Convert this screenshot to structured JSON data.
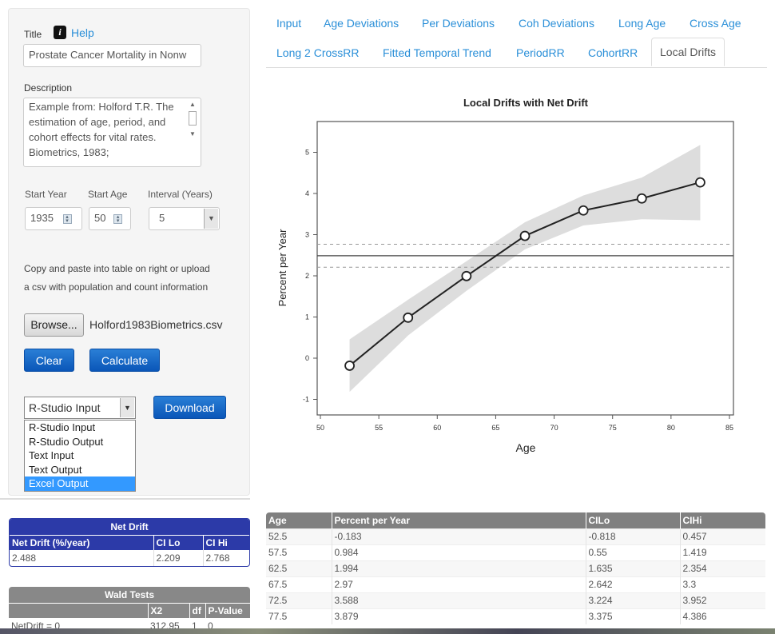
{
  "sidebar": {
    "title_label": "Title",
    "help_label": "Help",
    "title_value": "Prostate Cancer Mortality in Nonw",
    "description_label": "Description",
    "description_value": " Example from: Holford T.R. The estimation of age, period, and cohort effects for vital rates. Biometrics, 1983;",
    "start_year_label": "Start Year",
    "start_year": "1935",
    "start_age_label": "Start Age",
    "start_age": "50",
    "interval_label": "Interval (Years)",
    "interval": "5",
    "upload_text_1": "Copy and paste into table on right or upload",
    "upload_text_2": "a csv with population and count information",
    "browse_label": "Browse...",
    "file_name": "Holford1983Biometrics.csv",
    "clear_label": "Clear",
    "calculate_label": "Calculate",
    "download_select": "R-Studio Input",
    "download_label": "Download",
    "download_options": [
      "R-Studio Input",
      "R-Studio Output",
      "Text Input",
      "Text Output",
      "Excel Output"
    ],
    "highlighted_option": "Excel Output"
  },
  "tabs": [
    "Input",
    "Age Deviations",
    "Per Deviations",
    "Coh Deviations",
    "Long Age",
    "Cross Age",
    "Long 2 CrossRR",
    "Fitted Temporal Trend",
    "PeriodRR",
    "CohortRR",
    "Local Drifts"
  ],
  "active_tab": "Local Drifts",
  "net_drift": {
    "caption": "Net Drift",
    "headers": [
      "Net Drift (%/year)",
      "CI Lo",
      "CI Hi"
    ],
    "row": [
      "2.488",
      "2.209",
      "2.768"
    ]
  },
  "wald": {
    "caption": "Wald Tests",
    "headers": [
      "",
      "X2",
      "df",
      "P-Value"
    ],
    "row": [
      "NetDrift = 0",
      "312.95",
      "1",
      "0"
    ]
  },
  "table": {
    "headers": [
      "Age",
      "Percent per Year",
      "CILo",
      "CIHi"
    ],
    "rows": [
      [
        "52.5",
        "-0.183",
        "-0.818",
        "0.457"
      ],
      [
        "57.5",
        "0.984",
        "0.55",
        "1.419"
      ],
      [
        "62.5",
        "1.994",
        "1.635",
        "2.354"
      ],
      [
        "67.5",
        "2.97",
        "2.642",
        "3.3"
      ],
      [
        "72.5",
        "3.588",
        "3.224",
        "3.952"
      ],
      [
        "77.5",
        "3.879",
        "3.375",
        "4.386"
      ]
    ]
  },
  "chart_data": {
    "type": "line",
    "title": "Local Drifts with Net Drift",
    "xlabel": "Age",
    "ylabel": "Percent per Year",
    "xlim": [
      50,
      85
    ],
    "ylim": [
      -1.4,
      5.7
    ],
    "xticks": [
      50,
      55,
      60,
      65,
      70,
      75,
      80,
      85
    ],
    "yticks": [
      -1,
      0,
      1,
      2,
      3,
      4,
      5
    ],
    "x": [
      52.5,
      57.5,
      62.5,
      67.5,
      72.5,
      77.5,
      82.5
    ],
    "y": [
      -0.183,
      0.984,
      1.994,
      2.97,
      3.588,
      3.879,
      4.27
    ],
    "ci_lo": [
      -0.818,
      0.55,
      1.635,
      2.642,
      3.224,
      3.375,
      3.35
    ],
    "ci_hi": [
      0.457,
      1.419,
      2.354,
      3.3,
      3.952,
      4.386,
      5.18
    ],
    "net_drift": 2.488,
    "net_drift_ci": [
      2.209,
      2.768
    ],
    "band_color": "#dddddd",
    "line_color": "#222222",
    "grid": false
  }
}
